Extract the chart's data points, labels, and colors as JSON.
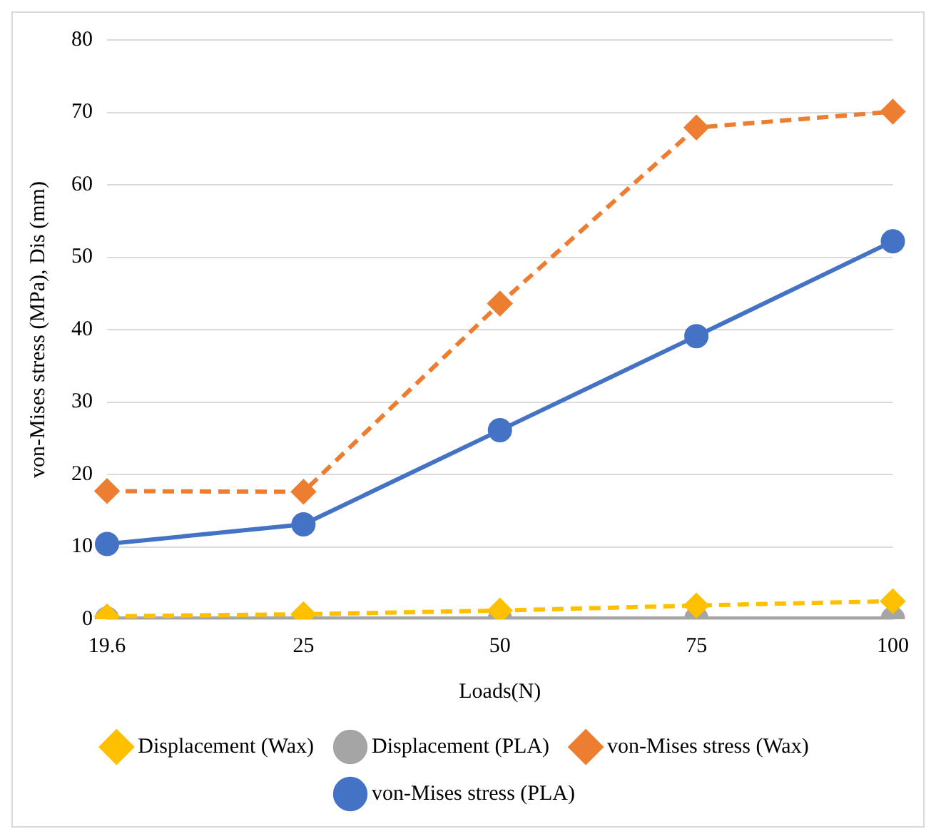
{
  "chart_data": {
    "type": "line",
    "xlabel": "Loads(N)",
    "ylabel": "von-Mises stress (MPa), Dis (mm)",
    "categories": [
      "19.6",
      "25",
      "50",
      "75",
      "100"
    ],
    "series": [
      {
        "name": "von-Mises stress (PLA)",
        "color": "#4472c4",
        "values": [
          10.4,
          13.1,
          26.1,
          39.1,
          52.2
        ],
        "marker": "circle",
        "line_style": "solid"
      },
      {
        "name": "von-Mises stress (Wax)",
        "color": "#ed7d31",
        "values": [
          17.7,
          17.6,
          43.6,
          67.9,
          70.1
        ],
        "marker": "diamond",
        "line_style": "dashed"
      },
      {
        "name": "Displacement (PLA)",
        "color": "#a5a5a5",
        "values": [
          0.1,
          0.1,
          0.1,
          0.1,
          0.1
        ],
        "marker": "circle",
        "line_style": "solid"
      },
      {
        "name": "Displacement (Wax)",
        "color": "#ffc000",
        "values": [
          0.4,
          0.7,
          1.2,
          1.9,
          2.5
        ],
        "marker": "diamond",
        "line_style": "dashed"
      }
    ],
    "ylim": [
      0,
      80
    ],
    "yticks": [
      0,
      10,
      20,
      30,
      40,
      50,
      60,
      70,
      80
    ],
    "grid": "y",
    "legend": "bottom"
  }
}
